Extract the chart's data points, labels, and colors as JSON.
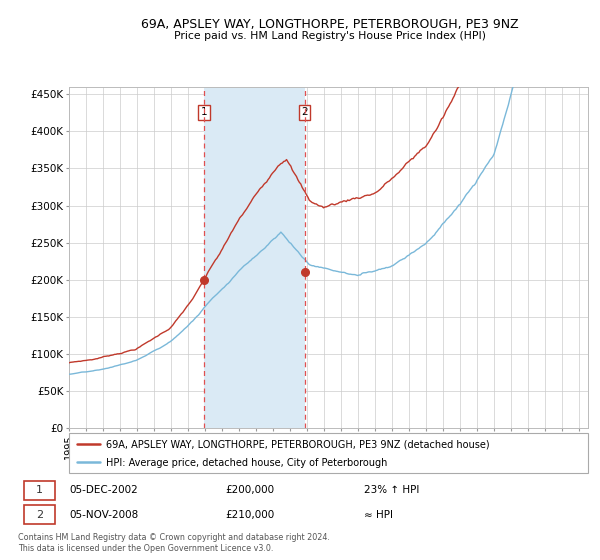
{
  "title": "69A, APSLEY WAY, LONGTHORPE, PETERBOROUGH, PE3 9NZ",
  "subtitle": "Price paid vs. HM Land Registry's House Price Index (HPI)",
  "ylabel_ticks": [
    "£0",
    "£50K",
    "£100K",
    "£150K",
    "£200K",
    "£250K",
    "£300K",
    "£350K",
    "£400K",
    "£450K"
  ],
  "ytick_values": [
    0,
    50000,
    100000,
    150000,
    200000,
    250000,
    300000,
    350000,
    400000,
    450000
  ],
  "ylim": [
    0,
    460000
  ],
  "xlim_start": 1995.0,
  "xlim_end": 2025.5,
  "purchase1_x": 2002.92,
  "purchase1_y": 200000,
  "purchase2_x": 2008.84,
  "purchase2_y": 210000,
  "shading_start": 2002.92,
  "shading_end": 2008.84,
  "hpi_line_color": "#7ab8d9",
  "price_line_color": "#c0392b",
  "dot_color": "#c0392b",
  "shading_color": "#daeaf5",
  "dashed_color": "#e05050",
  "legend1_text": "69A, APSLEY WAY, LONGTHORPE, PETERBOROUGH, PE3 9NZ (detached house)",
  "legend2_text": "HPI: Average price, detached house, City of Peterborough",
  "transaction1_date": "05-DEC-2002",
  "transaction1_price": "£200,000",
  "transaction1_hpi": "23% ↑ HPI",
  "transaction2_date": "05-NOV-2008",
  "transaction2_price": "£210,000",
  "transaction2_hpi": "≈ HPI",
  "footer": "Contains HM Land Registry data © Crown copyright and database right 2024.\nThis data is licensed under the Open Government Licence v3.0.",
  "background_color": "#ffffff",
  "grid_color": "#cccccc"
}
